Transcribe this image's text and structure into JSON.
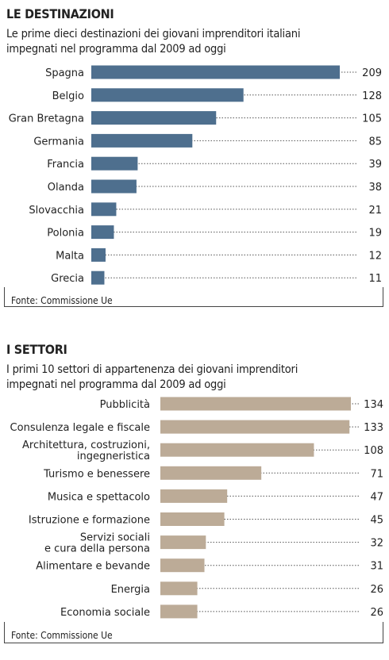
{
  "charts": [
    {
      "title": "LE DESTINAZIONI",
      "subtitle_lines": [
        "Le prime dieci destinazioni dei giovani imprenditori italiani",
        "impegnati nel programma dal 2009 ad oggi"
      ],
      "source": "Fonte: Commissione Ue",
      "color": "#4e6f8e"
    },
    {
      "title": "I SETTORI",
      "subtitle_lines": [
        "I primi 10 settori di appartenenza dei giovani imprenditori",
        "impegnati nel programma dal 2009 ad oggi"
      ],
      "source": "Fonte: Commissione Ue",
      "color": "#bcab97"
    }
  ],
  "chart_data": [
    {
      "type": "bar",
      "orientation": "horizontal",
      "title": "LE DESTINAZIONI",
      "categories": [
        "Spagna",
        "Belgio",
        "Gran Bretagna",
        "Germania",
        "Francia",
        "Olanda",
        "Slovacchia",
        "Polonia",
        "Malta",
        "Grecia"
      ],
      "values": [
        209,
        128,
        105,
        85,
        39,
        38,
        21,
        19,
        12,
        11
      ],
      "xlim": [
        0,
        209
      ],
      "grid": false,
      "legend": "none"
    },
    {
      "type": "bar",
      "orientation": "horizontal",
      "title": "I SETTORI",
      "categories": [
        [
          "Pubblicità"
        ],
        [
          "Consulenza legale e fiscale"
        ],
        [
          "Architettura, costruzioni,",
          "ingegneristica"
        ],
        [
          "Turismo e benessere"
        ],
        [
          "Musica e spettacolo"
        ],
        [
          "Istruzione e formazione"
        ],
        [
          "Servizi sociali",
          "e cura della persona"
        ],
        [
          "Alimentare e bevande"
        ],
        [
          "Energia"
        ],
        [
          "Economia sociale"
        ]
      ],
      "values": [
        134,
        133,
        108,
        71,
        47,
        45,
        32,
        31,
        26,
        26
      ],
      "xlim": [
        0,
        134
      ],
      "grid": false,
      "legend": "none"
    }
  ]
}
